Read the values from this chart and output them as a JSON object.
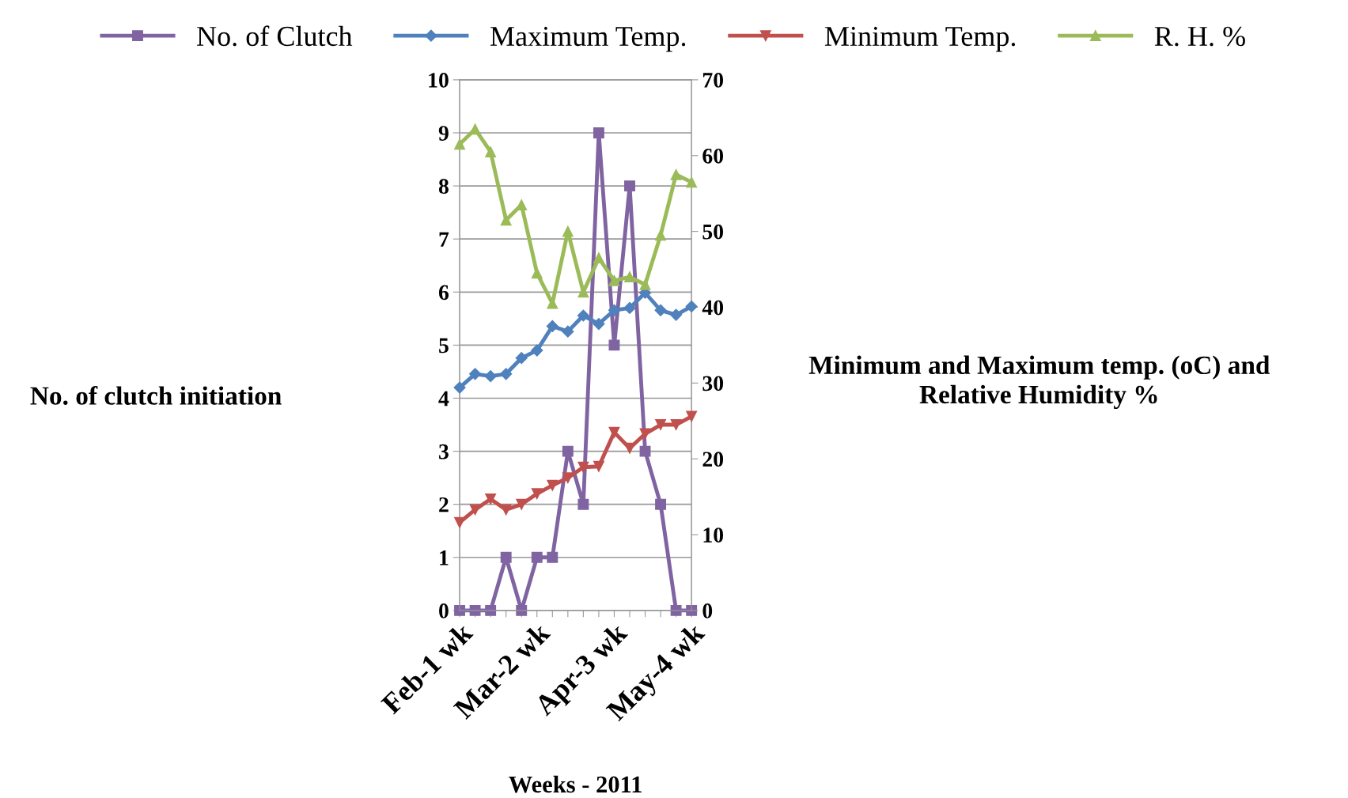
{
  "chart_data": {
    "type": "line",
    "xlabel": "Weeks - 2011",
    "ylabel": "No. of clutch initiation",
    "y2label": "Minimum and Maximum temp. (oC) and\nRelative Humidity %",
    "categories": [
      "Feb-1 wk",
      null,
      null,
      null,
      null,
      "Mar-2 wk",
      null,
      null,
      null,
      null,
      "Apr-3 wk",
      null,
      null,
      null,
      null,
      "May-4 wk"
    ],
    "series": [
      {
        "name": "No. of Clutch",
        "color": "#8064a2",
        "marker": "square",
        "values": [
          0,
          0,
          0,
          1,
          0,
          1,
          1,
          3,
          2,
          9,
          5,
          8,
          3,
          2,
          0,
          0
        ]
      },
      {
        "name": "Maximum Temp.",
        "color": "#4f81bd",
        "marker": "diamond",
        "axis": "y2",
        "values": [
          29.4,
          31.2,
          30.9,
          31.2,
          33.3,
          34.3,
          37.5,
          36.8,
          38.9,
          37.8,
          39.6,
          39.9,
          41.9,
          39.6,
          39.0,
          40.1
        ]
      },
      {
        "name": "Minimum Temp.",
        "color": "#c0504d",
        "marker": "triangle_down",
        "axis": "y2",
        "values": [
          11.6,
          13.3,
          14.7,
          13.3,
          14.0,
          15.4,
          16.5,
          17.5,
          18.9,
          19.0,
          23.5,
          21.4,
          23.3,
          24.5,
          24.5,
          25.6
        ]
      },
      {
        "name": "R. H. %",
        "color": "#9bbb59",
        "marker": "triangle",
        "axis": "y2",
        "values": [
          61.5,
          63.5,
          60.5,
          51.5,
          53.5,
          44.5,
          40.5,
          50.0,
          42.0,
          46.5,
          43.5,
          44.0,
          43.0,
          49.5,
          57.5,
          56.5
        ]
      }
    ],
    "ylim": [
      0,
      10
    ],
    "yticks": [
      0,
      1,
      2,
      3,
      4,
      5,
      6,
      7,
      8,
      9,
      10
    ],
    "y2lim": [
      0,
      70
    ],
    "y2ticks": [
      0,
      10,
      20,
      30,
      40,
      50,
      60,
      70
    ],
    "grid": "y",
    "legend": "top"
  }
}
